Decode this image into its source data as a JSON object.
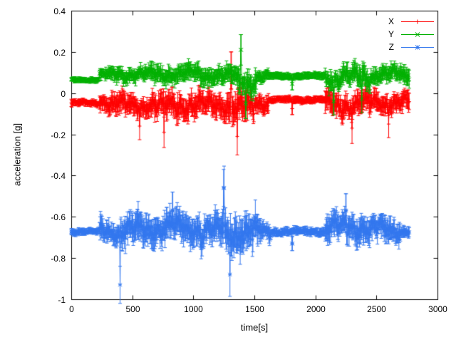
{
  "figure": {
    "background": "#ffffff",
    "frame_color": "#000000"
  },
  "chart_data": {
    "type": "scatter",
    "style": "points-with-yerrorbars-and-lines",
    "title": "",
    "xlabel": "time[s]",
    "ylabel": "acceleration [g]",
    "xlim": [
      0,
      3000
    ],
    "ylim": [
      -1,
      0.4
    ],
    "x_ticks": [
      "0",
      "500",
      "1000",
      "1500",
      "2000",
      "2500",
      "3000"
    ],
    "y_ticks": [
      "-1",
      "-0.8",
      "-0.6",
      "-0.4",
      "-0.2",
      "0",
      "0.2",
      "0.4"
    ],
    "grid": false,
    "legend_position": "top-right",
    "t_end": 2770,
    "step": 4,
    "series": [
      {
        "name": "X",
        "color": "#ff0000",
        "marker": "plus",
        "baseline": -0.05,
        "segments": [
          [
            0,
            230,
            -0.048,
            0.008,
            0.012
          ],
          [
            230,
            300,
            -0.042,
            0.028,
            0.03
          ],
          [
            300,
            650,
            -0.055,
            0.035,
            0.035
          ],
          [
            650,
            1050,
            -0.06,
            0.045,
            0.04
          ],
          [
            1050,
            1250,
            -0.055,
            0.04,
            0.04
          ],
          [
            1250,
            1500,
            -0.07,
            0.055,
            0.05
          ],
          [
            1500,
            1620,
            -0.05,
            0.028,
            0.03
          ],
          [
            1620,
            2080,
            -0.032,
            0.007,
            0.012
          ],
          [
            2080,
            2450,
            -0.055,
            0.045,
            0.04
          ],
          [
            2450,
            2771,
            -0.045,
            0.035,
            0.035
          ]
        ],
        "spikes": [
          [
            560,
            -0.16
          ],
          [
            760,
            -0.19
          ],
          [
            1310,
            0.11
          ],
          [
            1360,
            -0.21
          ],
          [
            1810,
            -0.075
          ],
          [
            2300,
            -0.17
          ],
          [
            2600,
            -0.15
          ]
        ]
      },
      {
        "name": "Y",
        "color": "#00b000",
        "marker": "x",
        "baseline": 0.08,
        "segments": [
          [
            0,
            230,
            0.065,
            0.006,
            0.01
          ],
          [
            230,
            330,
            0.088,
            0.018,
            0.02
          ],
          [
            330,
            650,
            0.09,
            0.024,
            0.025
          ],
          [
            650,
            1050,
            0.095,
            0.028,
            0.03
          ],
          [
            1050,
            1350,
            0.085,
            0.028,
            0.03
          ],
          [
            1350,
            1520,
            0.06,
            0.045,
            0.04
          ],
          [
            1520,
            1620,
            0.08,
            0.018,
            0.02
          ],
          [
            1620,
            2080,
            0.083,
            0.006,
            0.012
          ],
          [
            2080,
            2450,
            0.08,
            0.038,
            0.035
          ],
          [
            2450,
            2771,
            0.09,
            0.032,
            0.03
          ]
        ],
        "spikes": [
          [
            1390,
            0.21
          ],
          [
            1430,
            -0.05
          ],
          [
            1810,
            0.045
          ],
          [
            2150,
            -0.04
          ],
          [
            2380,
            -0.03
          ]
        ]
      },
      {
        "name": "Z",
        "color": "#3377ee",
        "marker": "star",
        "baseline": -0.67,
        "segments": [
          [
            0,
            230,
            -0.672,
            0.008,
            0.012
          ],
          [
            230,
            400,
            -0.67,
            0.04,
            0.04
          ],
          [
            400,
            650,
            -0.665,
            0.05,
            0.05
          ],
          [
            650,
            1050,
            -0.65,
            0.055,
            0.05
          ],
          [
            1050,
            1250,
            -0.67,
            0.055,
            0.05
          ],
          [
            1250,
            1550,
            -0.68,
            0.065,
            0.06
          ],
          [
            1550,
            1640,
            -0.67,
            0.028,
            0.03
          ],
          [
            1640,
            2080,
            -0.672,
            0.01,
            0.015
          ],
          [
            2080,
            2450,
            -0.655,
            0.05,
            0.045
          ],
          [
            2450,
            2700,
            -0.665,
            0.045,
            0.04
          ],
          [
            2700,
            2771,
            -0.67,
            0.014,
            0.02
          ]
        ],
        "spikes": [
          [
            400,
            -0.93
          ],
          [
            830,
            -0.57
          ],
          [
            1250,
            -0.46
          ],
          [
            1300,
            -0.88
          ],
          [
            1810,
            -0.73
          ],
          [
            2250,
            -0.57
          ]
        ]
      }
    ]
  }
}
